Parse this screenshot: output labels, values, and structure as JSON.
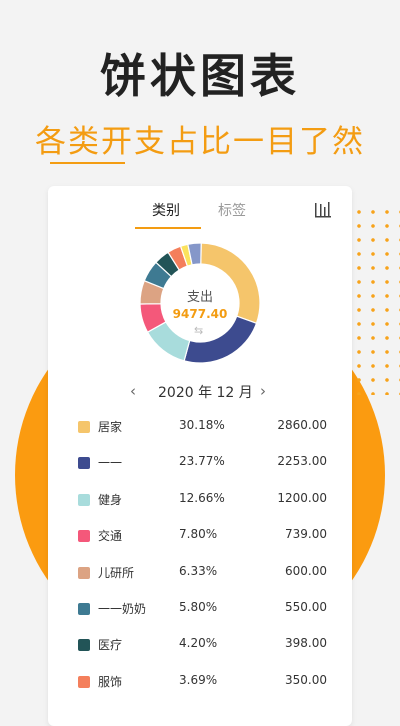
{
  "hero": {
    "title": "饼状图表",
    "subtitle": "各类开支占比一目了然"
  },
  "card": {
    "tabs": [
      "类别",
      "标签"
    ],
    "active_tab": 0,
    "chart_toggle_icon": "bar-chart-icon",
    "center_label": "支出",
    "center_amount": "9477.40",
    "refresh_icon": "refresh-icon",
    "month": "2020 年 12 月",
    "prev_icon": "chevron-left-icon",
    "next_icon": "chevron-right-icon"
  },
  "chart_data": {
    "type": "pie",
    "categories": [
      "居家",
      "一一",
      "健身",
      "交通",
      "儿研所",
      "一一奶奶",
      "医疗",
      "服饰"
    ],
    "values": [
      2860.0,
      2253.0,
      1200.0,
      739.0,
      600.0,
      550.0,
      398.0,
      350.0
    ],
    "percents": [
      "30.18%",
      "23.77%",
      "12.66%",
      "7.80%",
      "6.33%",
      "5.80%",
      "4.20%",
      "3.69%"
    ],
    "amounts": [
      "2860.00",
      "2253.00",
      "1200.00",
      "739.00",
      "600.00",
      "550.00",
      "398.00",
      "350.00"
    ],
    "colors": [
      "#f5c56b",
      "#3d4b8f",
      "#a8dcdc",
      "#f4587a",
      "#dca383",
      "#3e7a92",
      "#225457",
      "#f47f5c"
    ],
    "extra_colors": [
      "#fbe25d",
      "#8597c9"
    ],
    "total": 9477.4
  },
  "colors": {
    "accent": "#f39c12",
    "orange_bg": "#fb9b10"
  }
}
